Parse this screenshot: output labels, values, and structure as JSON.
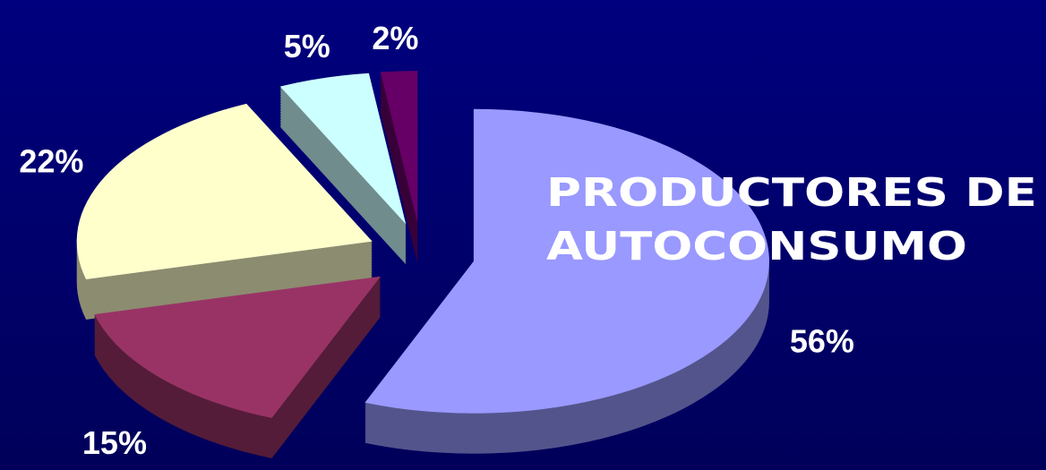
{
  "chart_data": {
    "type": "pie",
    "title": [
      "PRODUCTORES DE",
      "AUTOCONSUMO"
    ],
    "values": [
      56,
      15,
      22,
      5,
      2
    ],
    "value_labels": [
      "56%",
      "15%",
      "22%",
      "5%",
      "2%"
    ],
    "colors": [
      "#9999ff",
      "#993366",
      "#ffffcc",
      "#ccffff",
      "#660066"
    ]
  }
}
